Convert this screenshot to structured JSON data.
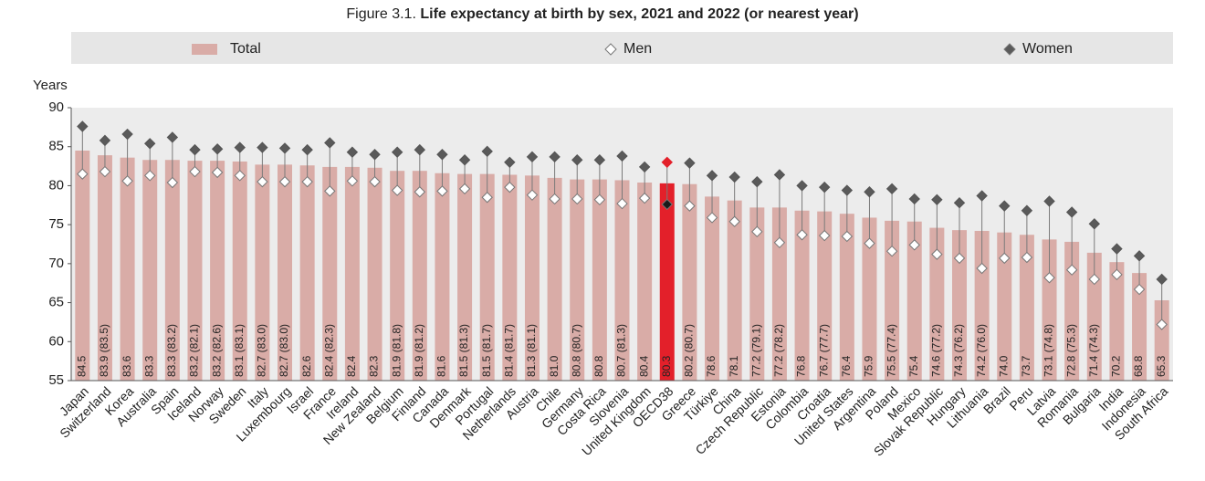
{
  "chart_data": {
    "type": "bar",
    "figure_label": "Figure 3.1.",
    "title": "Life expectancy at birth by sex, 2021 and 2022 (or nearest year)",
    "y_label": "Years",
    "categories": [
      "Japan",
      "Switzerland",
      "Korea",
      "Australia",
      "Spain",
      "Iceland",
      "Norway",
      "Sweden",
      "Italy",
      "Luxembourg",
      "Israel",
      "France",
      "Ireland",
      "New Zealand",
      "Belgium",
      "Finland",
      "Canada",
      "Denmark",
      "Portugal",
      "Netherlands",
      "Austria",
      "Chile",
      "Germany",
      "Costa Rica",
      "Slovenia",
      "United Kingdom",
      "OECD38",
      "Greece",
      "Türkiye",
      "China",
      "Czech Republic",
      "Estonia",
      "Colombia",
      "Croatia",
      "United States",
      "Argentina",
      "Poland",
      "Mexico",
      "Slovak Republic",
      "Hungary",
      "Lithuania",
      "Brazil",
      "Peru",
      "Latvia",
      "Romania",
      "Bulgaria",
      "India",
      "Indonesia",
      "South Africa"
    ],
    "series": [
      {
        "name": "Total",
        "color": "#d9aca7",
        "values": [
          84.5,
          83.9,
          83.6,
          83.3,
          83.3,
          83.2,
          83.2,
          83.1,
          82.7,
          82.7,
          82.6,
          82.4,
          82.4,
          82.3,
          81.9,
          81.9,
          81.6,
          81.5,
          81.5,
          81.4,
          81.3,
          81.0,
          80.8,
          80.8,
          80.7,
          80.4,
          80.3,
          80.2,
          78.6,
          78.1,
          77.2,
          77.2,
          76.8,
          76.7,
          76.4,
          75.9,
          75.5,
          75.4,
          74.6,
          74.3,
          74.2,
          74.0,
          73.7,
          73.1,
          72.8,
          71.4,
          70.2,
          68.8,
          65.3
        ],
        "value_labels": [
          "84.5",
          "83.9 (83.5)",
          "83.6",
          "83.3",
          "83.3 (83.2)",
          "83.2 (82.1)",
          "83.2 (82.6)",
          "83.1 (83.1)",
          "82.7 (83.0)",
          "82.7 (83.0)",
          "82.6",
          "82.4 (82.3)",
          "82.4",
          "82.3",
          "81.9 (81.8)",
          "81.9 (81.2)",
          "81.6",
          "81.5 (81.3)",
          "81.5 (81.7)",
          "81.4 (81.7)",
          "81.3 (81.1)",
          "81.0",
          "80.8 (80.7)",
          "80.8",
          "80.7 (81.3)",
          "80.4",
          "80.3",
          "80.2 (80.7)",
          "78.6",
          "78.1",
          "77.2 (79.1)",
          "77.2 (78.2)",
          "76.8",
          "76.7 (77.7)",
          "76.4",
          "75.9",
          "75.5 (77.4)",
          "75.4",
          "74.6 (77.2)",
          "74.3 (76.2)",
          "74.2 (76.0)",
          "74.0",
          "73.7",
          "73.1 (74.8)",
          "72.8 (75.3)",
          "71.4 (74.3)",
          "70.2",
          "68.8",
          "65.3"
        ]
      },
      {
        "name": "Men",
        "color": "#ffffff",
        "values": [
          81.5,
          81.8,
          80.6,
          81.3,
          80.4,
          81.8,
          81.7,
          81.3,
          80.5,
          80.5,
          80.5,
          79.3,
          80.6,
          80.5,
          79.4,
          79.2,
          79.3,
          79.6,
          78.5,
          79.8,
          78.8,
          78.3,
          78.3,
          78.2,
          77.7,
          78.4,
          77.6,
          77.4,
          75.9,
          75.4,
          74.1,
          72.7,
          73.7,
          73.6,
          73.5,
          72.6,
          71.6,
          72.4,
          71.2,
          70.7,
          69.4,
          70.7,
          70.8,
          68.2,
          69.2,
          68.0,
          68.6,
          66.7,
          62.2
        ]
      },
      {
        "name": "Women",
        "color": "#5a5a5a",
        "values": [
          87.6,
          85.8,
          86.6,
          85.4,
          86.2,
          84.6,
          84.7,
          84.9,
          84.9,
          84.8,
          84.6,
          85.5,
          84.3,
          84.0,
          84.3,
          84.6,
          84.0,
          83.3,
          84.4,
          83.0,
          83.7,
          83.7,
          83.3,
          83.3,
          83.8,
          82.4,
          83.0,
          82.9,
          81.3,
          81.1,
          80.5,
          81.4,
          80.0,
          79.8,
          79.4,
          79.2,
          79.6,
          78.3,
          78.2,
          77.8,
          78.7,
          77.4,
          76.8,
          78.0,
          76.6,
          75.1,
          71.9,
          71.0,
          68.0
        ]
      }
    ],
    "highlight": {
      "index": 26,
      "color": "#e3202a",
      "men_color": "#1a1a1a",
      "women_color": "#e3202a"
    },
    "ylim": [
      55,
      90
    ],
    "yticks": [
      55,
      60,
      65,
      70,
      75,
      80,
      85,
      90
    ],
    "grid": false
  }
}
